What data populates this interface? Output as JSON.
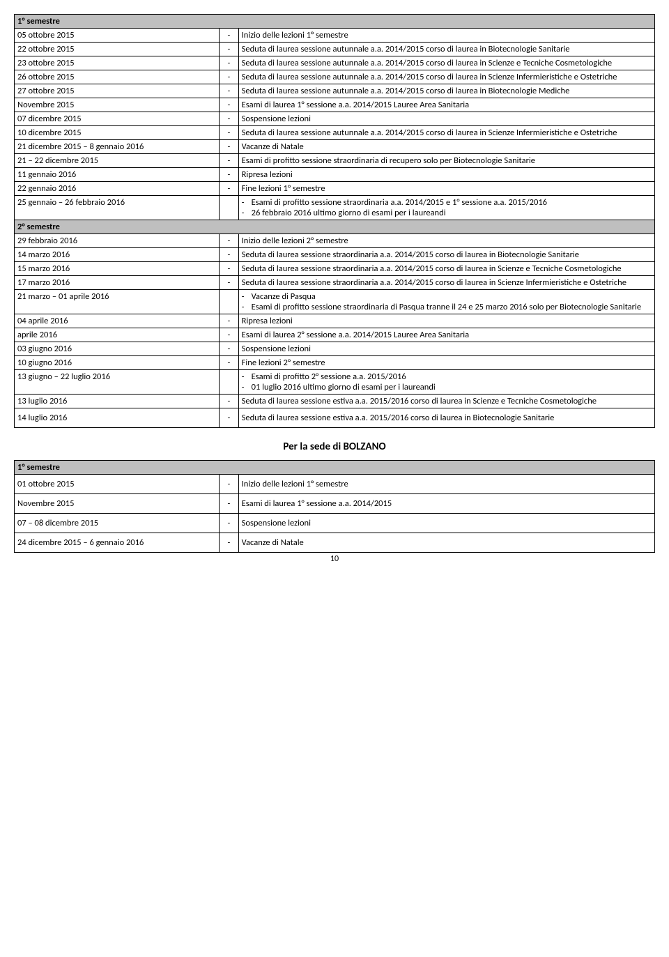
{
  "table1": {
    "headers": {
      "sem1": "1° semestre",
      "sem2": "2° semestre"
    },
    "rows": [
      {
        "left": "05 ottobre 2015",
        "right": "Inizio delle lezioni 1° semestre"
      },
      {
        "left": "22 ottobre 2015",
        "right": "Seduta di laurea sessione autunnale a.a. 2014/2015 corso di laurea in Biotecnologie Sanitarie"
      },
      {
        "left": "23 ottobre 2015",
        "right": "Seduta di laurea sessione autunnale a.a. 2014/2015 corso di laurea in Scienze e Tecniche Cosmetologiche"
      },
      {
        "left": "26 ottobre 2015",
        "right": "Seduta di laurea sessione autunnale a.a. 2014/2015 corso di laurea in Scienze Infermieristiche e Ostetriche"
      },
      {
        "left": "27 ottobre 2015",
        "right": "Seduta di laurea sessione autunnale a.a. 2014/2015 corso di laurea in Biotecnologie Mediche"
      },
      {
        "left": "Novembre  2015",
        "right": "Esami di laurea 1° sessione a.a. 2014/2015 Lauree Area Sanitaria"
      },
      {
        "left": "07 dicembre 2015",
        "right": "Sospensione lezioni"
      },
      {
        "left": "10 dicembre 2015",
        "right": "Seduta di laurea sessione autunnale a.a. 2014/2015 corso di laurea in Scienze Infermieristiche e Ostetriche"
      },
      {
        "left": "21 dicembre 2015 – 8 gennaio 2016",
        "right": "Vacanze di Natale"
      },
      {
        "left": "21 – 22 dicembre 2015",
        "right": "Esami di profitto sessione straordinaria di recupero solo per Biotecnologie Sanitarie"
      },
      {
        "left": "11 gennaio 2016",
        "right": "Ripresa lezioni"
      },
      {
        "left": "22 gennaio 2016",
        "right": "Fine lezioni 1° semestre"
      },
      {
        "left": "25 gennaio – 26 febbraio 2016",
        "right_multi": [
          "Esami di profitto sessione straordinaria a.a. 2014/2015 e  1° sessione a.a. 2015/2016",
          "26 febbraio 2016 ultimo giorno di esami per i laureandi"
        ]
      }
    ],
    "rows2": [
      {
        "left": "29 febbraio 2016",
        "right": "Inizio delle lezioni 2° semestre"
      },
      {
        "left": "14 marzo 2016",
        "right": "Seduta di laurea sessione straordinaria a.a. 2014/2015 corso di laurea in Biotecnologie Sanitarie"
      },
      {
        "left": "15 marzo 2016",
        "right": "Seduta di laurea sessione straordinaria a.a. 2014/2015 corso di laurea in Scienze e Tecniche Cosmetologiche"
      },
      {
        "left": "17 marzo 2016",
        "right": "Seduta di laurea sessione straordinaria a.a. 2014/2015 corso di laurea in Scienze Infermieristiche e Ostetriche"
      },
      {
        "left": "21 marzo – 01 aprile 2016",
        "right_multi": [
          "Vacanze di Pasqua",
          "Esami di profitto sessione straordinaria di Pasqua tranne il 24 e 25 marzo 2016 solo per Biotecnologie Sanitarie"
        ]
      },
      {
        "left": "04 aprile 2016",
        "right": "Ripresa lezioni"
      },
      {
        "left": "aprile 2016",
        "right": "Esami di laurea 2° sessione a.a. 2014/2015 Lauree Area Sanitaria"
      },
      {
        "left": "03 giugno 2016",
        "right": "Sospensione lezioni"
      },
      {
        "left": "10 giugno 2016",
        "right": "Fine lezioni 2° semestre"
      },
      {
        "left": "13 giugno – 22 luglio 2016",
        "right_multi": [
          "Esami di profitto 2° sessione a.a. 2015/2016",
          "01 luglio 2016 ultimo giorno di esami per i laureandi"
        ]
      },
      {
        "left": "13 luglio 2016",
        "right": "Seduta di laurea sessione estiva a.a. 2015/2016 corso di laurea in Scienze e Tecniche Cosmetologiche"
      }
    ],
    "row_gap": {
      "left": "14 luglio 2016",
      "right": "Seduta di laurea sessione estiva a.a. 2015/2016 corso di laurea in Biotecnologie Sanitarie"
    }
  },
  "section_title": "Per la sede di BOLZANO",
  "table2": {
    "header": "1° semestre",
    "rows": [
      {
        "left": "01 ottobre 2015",
        "right": "Inizio delle lezioni 1° semestre"
      },
      {
        "left": "Novembre  2015",
        "right": "Esami di laurea 1° sessione a.a. 2014/2015"
      },
      {
        "left": "07 – 08 dicembre 2015",
        "right": "Sospensione lezioni"
      },
      {
        "left": "24 dicembre 2015 – 6 gennaio 2016",
        "right": "Vacanze di Natale"
      }
    ]
  },
  "page_number": "10",
  "dash": "-",
  "styling": {
    "header_bg": "#bfbfbf",
    "border_color": "#000000",
    "font_family": "Calibri",
    "font_size_body": 12.5,
    "font_size_title": 15
  }
}
